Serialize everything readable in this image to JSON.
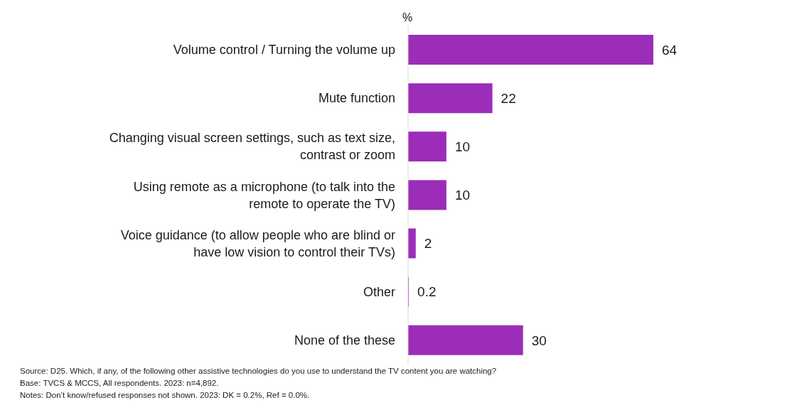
{
  "chart_data": {
    "type": "bar",
    "orientation": "horizontal",
    "xlabel": "%",
    "categories": [
      "Volume control / Turning the volume up",
      "Mute function",
      "Changing visual screen settings, such as text size, contrast or zoom",
      "Using remote as a microphone (to talk into the remote to operate the TV)",
      "Voice guidance (to allow people who are blind or have low vision to control their TVs)",
      "Other",
      "None of the these"
    ],
    "values": [
      64,
      22,
      10,
      10,
      2,
      0.2,
      30
    ],
    "color": "#9b2db8",
    "data_labels": true,
    "annotations": [
      "Source: D25. Which, if any, of the following other assistive technologies do you use to understand the TV content you are watching?",
      "Base: TVCS & MCCS, All respondents. 2023: n=4,892.",
      "Notes: Don’t know/refused responses not shown. 2023: DK = 0.2%, Ref = 0.0%."
    ]
  }
}
